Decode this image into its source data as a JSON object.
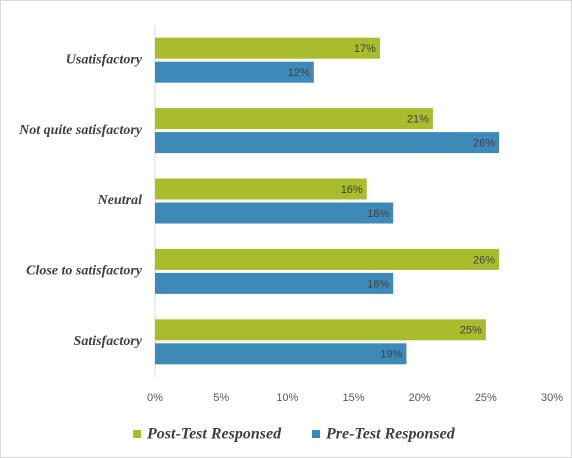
{
  "chart_data": {
    "type": "hbar",
    "categories": [
      "Usatisfactory",
      "Not quite satisfactory",
      "Neutral",
      "Close to satisfactory",
      "Satisfactory"
    ],
    "series": [
      {
        "name": "Post-Test Responsed",
        "color": "#a9bd2c",
        "values": [
          17,
          21,
          16,
          26,
          25
        ],
        "value_labels": [
          "17%",
          "21%",
          "16%",
          "26%",
          "25%"
        ]
      },
      {
        "name": "Pre-Test Responsed",
        "color": "#3d8ab9",
        "values": [
          12,
          26,
          18,
          18,
          19
        ],
        "value_labels": [
          "12%",
          "26%",
          "18%",
          "18%",
          "19%"
        ]
      }
    ],
    "xlim": [
      0,
      30
    ],
    "xticks": [
      {
        "value": 0,
        "label": "0%"
      },
      {
        "value": 5,
        "label": "5%"
      },
      {
        "value": 10,
        "label": "10%"
      },
      {
        "value": 15,
        "label": "15%"
      },
      {
        "value": 20,
        "label": "20%"
      },
      {
        "value": 25,
        "label": "25%"
      },
      {
        "value": 30,
        "label": "30%"
      }
    ],
    "grid": false,
    "legend": "bottom"
  }
}
